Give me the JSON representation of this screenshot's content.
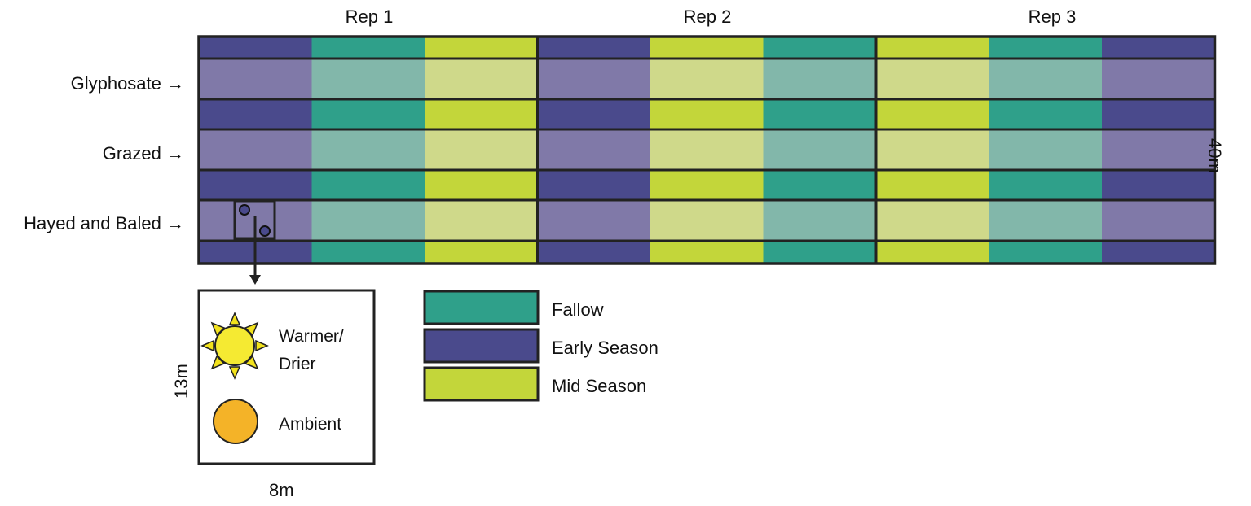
{
  "reps": [
    "Rep 1",
    "Rep 2",
    "Rep 3"
  ],
  "treatments": [
    "Glyphosate →",
    "Grazed →",
    "Hayed and Baled →"
  ],
  "rep_orders": [
    [
      "early",
      "fallow",
      "mid"
    ],
    [
      "early",
      "mid",
      "fallow"
    ],
    [
      "mid",
      "fallow",
      "early"
    ]
  ],
  "colors": {
    "fallow": "#2fa08a",
    "early": "#4a4a8c",
    "mid": "#c3d63a",
    "fallow_light": "#82b7aa",
    "early_light": "#8079a8",
    "mid_light": "#cfd98a",
    "sun": "#f5ea32",
    "sun_ray": "#f2e21c",
    "ambient": "#f4b328",
    "border": "#222222"
  },
  "dimensions": {
    "field_height": "40m",
    "plot_height": "13m",
    "plot_width": "8m"
  },
  "inset": {
    "warmer": "Warmer/",
    "drier": "Drier",
    "ambient": "Ambient"
  },
  "legend": [
    {
      "key": "fallow",
      "label": "Fallow"
    },
    {
      "key": "early",
      "label": "Early Season"
    },
    {
      "key": "mid",
      "label": "Mid Season"
    }
  ]
}
